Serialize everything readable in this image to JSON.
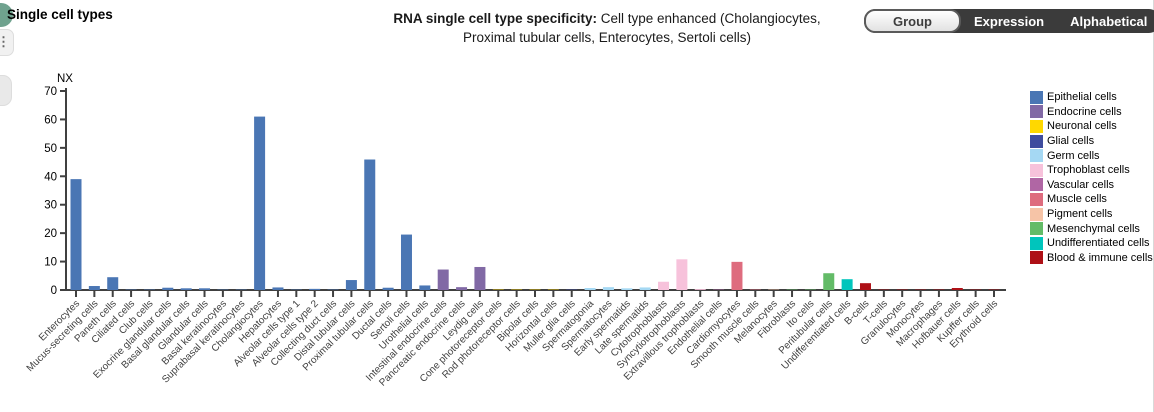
{
  "page": {
    "section_title": "Single cell types"
  },
  "header": {
    "bold": "RNA single cell type specificity:",
    "rest": " Cell type enhanced (Cholangiocytes,",
    "line2": "Proximal tubular cells, Enterocytes, Sertoli cells)"
  },
  "toolbar": {
    "buttons": [
      {
        "label": "Group",
        "active": true
      },
      {
        "label": "Expression",
        "active": false
      },
      {
        "label": "Alphabetical",
        "active": false
      }
    ]
  },
  "left_controls": {
    "menu_glyph": "⋮"
  },
  "chart_data": {
    "type": "bar",
    "ylabel": "NX",
    "ylim": [
      0,
      70
    ],
    "yticks": [
      0,
      10,
      20,
      30,
      40,
      50,
      60,
      70
    ],
    "grid": false,
    "legend_position": "right",
    "groups": [
      {
        "name": "Epithelial cells",
        "color": "#4a76b4"
      },
      {
        "name": "Endocrine cells",
        "color": "#8169a5"
      },
      {
        "name": "Neuronal cells",
        "color": "#ffd800"
      },
      {
        "name": "Glial cells",
        "color": "#3e4c9e"
      },
      {
        "name": "Germ cells",
        "color": "#a5d8f3"
      },
      {
        "name": "Trophoblast cells",
        "color": "#f7c2db"
      },
      {
        "name": "Vascular cells",
        "color": "#b066a4"
      },
      {
        "name": "Muscle cells",
        "color": "#de6c7e"
      },
      {
        "name": "Pigment cells",
        "color": "#f6c4a7"
      },
      {
        "name": "Mesenchymal cells",
        "color": "#63bb67"
      },
      {
        "name": "Undifferentiated cells",
        "color": "#00c5bc"
      },
      {
        "name": "Blood & immune cells",
        "color": "#ae1016"
      }
    ],
    "categories": [
      "Enterocytes",
      "Mucus-secreting cells",
      "Paneth cells",
      "Ciliated cells",
      "Club cells",
      "Exocrine glandular cells",
      "Basal glandular cells",
      "Glandular cells",
      "Basal keratinocytes",
      "Suprabasal keratinocytes",
      "Cholangiocytes",
      "Hepatocytes",
      "Alveolar cells type 1",
      "Alveolar cells type 2",
      "Collecting duct cells",
      "Distal tubular cells",
      "Proximal tubular cells",
      "Ductal cells",
      "Sertoli cells",
      "Urothelial cells",
      "Intestinal endocrine cells",
      "Pancreatic endocrine cells",
      "Leydig cells",
      "Cone photoreceptor cells",
      "Rod photoreceptor cells",
      "Bipolar cells",
      "Horizontal cells",
      "Muller glia cells",
      "Spermatogonia",
      "Spermatocytes",
      "Early spermatids",
      "Late spermatids",
      "Cytotrophoblasts",
      "Syncytiotrophoblasts",
      "Extravillous trophoblasts",
      "Endothelial cells",
      "Cardiomyocytes",
      "Smooth muscle cells",
      "Melanocytes",
      "Fibroblasts",
      "Ito cells",
      "Peritubular cells",
      "Undifferentiated cells",
      "B-cells",
      "T-cells",
      "Granulocytes",
      "Monocytes",
      "Macrophages",
      "Hofbauer cells",
      "Kupffer cells",
      "Erythroid cells"
    ],
    "values": [
      39.0,
      1.4,
      4.5,
      0.15,
      0.15,
      0.8,
      0.6,
      0.6,
      0.1,
      0.1,
      61.0,
      0.9,
      0.1,
      0.4,
      0.15,
      3.5,
      45.9,
      0.8,
      19.5,
      1.6,
      7.2,
      1.0,
      8.1,
      0.1,
      0.1,
      0.1,
      0.1,
      0.1,
      0.7,
      1.0,
      0.6,
      0.9,
      2.9,
      10.8,
      0.3,
      0.1,
      9.9,
      0.15,
      0.1,
      0.1,
      0.15,
      5.9,
      3.8,
      2.4,
      0.1,
      0.15,
      0.1,
      0.15,
      0.7,
      0.1,
      0.1
    ],
    "bar_group_index": [
      0,
      0,
      0,
      0,
      0,
      0,
      0,
      0,
      0,
      0,
      0,
      0,
      0,
      0,
      0,
      0,
      0,
      0,
      0,
      0,
      1,
      1,
      1,
      2,
      2,
      2,
      2,
      3,
      4,
      4,
      4,
      4,
      5,
      5,
      5,
      6,
      7,
      7,
      8,
      9,
      9,
      9,
      10,
      11,
      11,
      11,
      11,
      11,
      11,
      11,
      11
    ]
  }
}
